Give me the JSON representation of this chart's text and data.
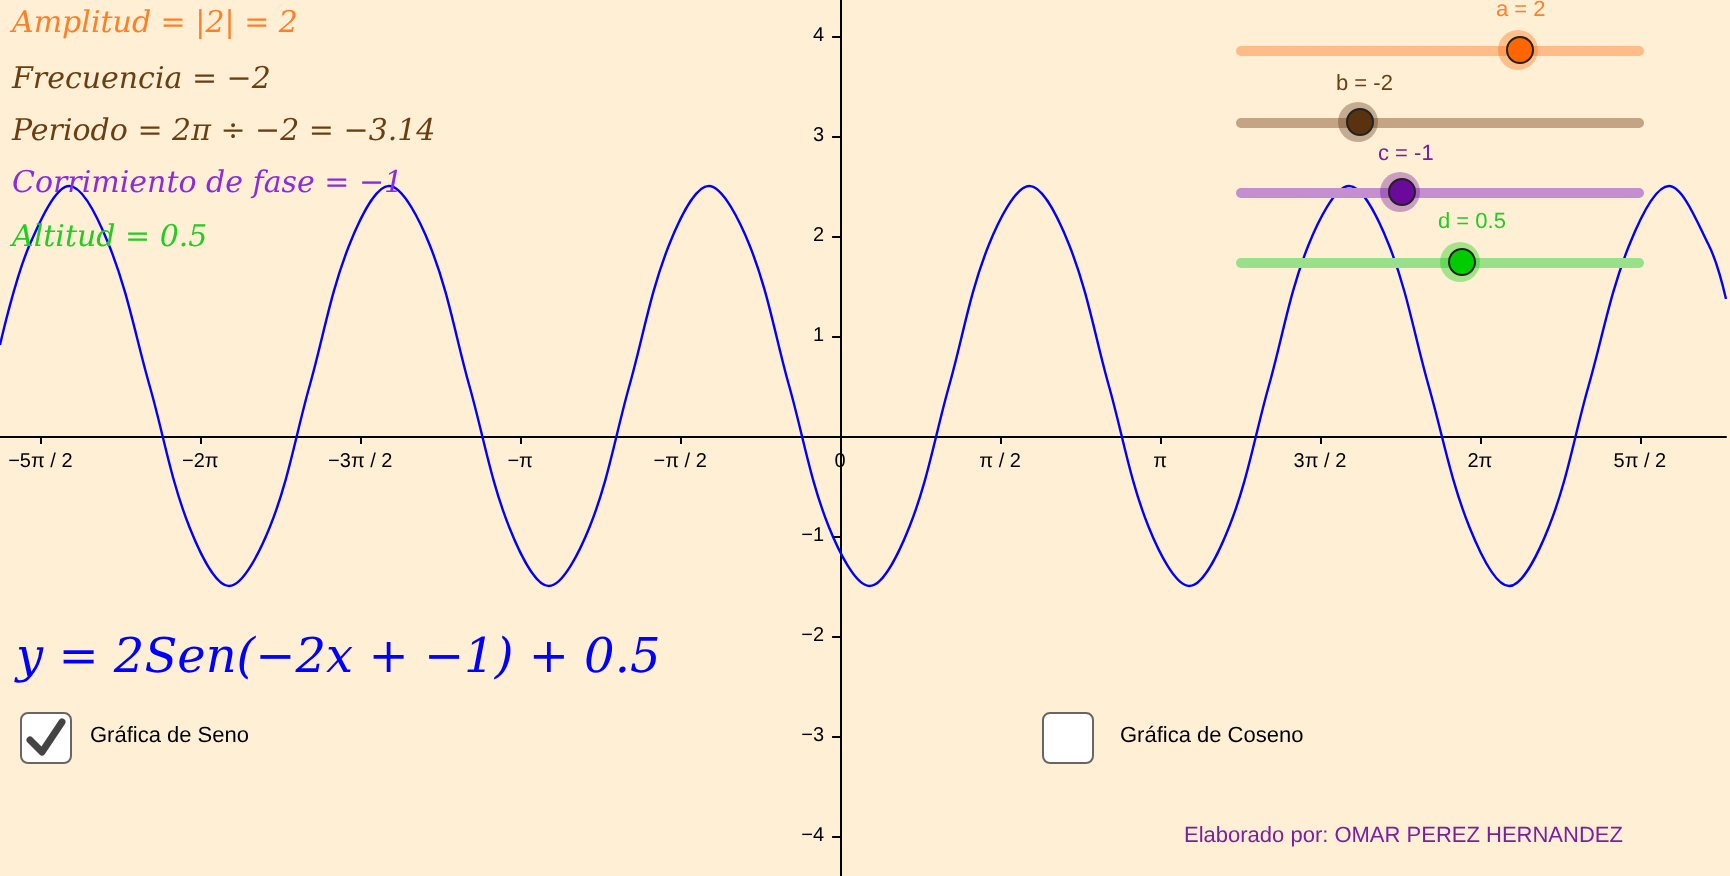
{
  "chart_data": {
    "type": "line",
    "color": "#0000ff",
    "marker": "none",
    "line_style": "solid",
    "grid": false,
    "x": [
      -8.25,
      -7.96,
      -7.57,
      -7.18,
      -6.78,
      -6.39,
      -6.0,
      -5.6,
      -5.21,
      -4.82,
      -4.43,
      -4.03,
      -3.64,
      -3.25,
      -2.86,
      -2.46,
      -2.07,
      -1.68,
      -1.29,
      -0.89,
      -0.5,
      -0.11,
      0.29,
      0.68,
      1.07,
      1.46,
      1.86,
      2.25,
      2.64,
      3.03,
      3.43,
      3.82,
      4.21,
      4.6,
      5.0,
      5.39,
      5.78,
      6.18,
      6.57,
      6.96,
      7.35,
      7.75,
      8.14,
      8.53,
      8.7
    ],
    "values": [
      0.91,
      1.91,
      2.5,
      1.91,
      0.5,
      -0.91,
      -1.5,
      -0.91,
      0.5,
      1.91,
      2.5,
      1.91,
      0.5,
      -0.91,
      -1.5,
      -0.91,
      0.5,
      1.91,
      2.5,
      1.91,
      0.5,
      -0.91,
      -1.5,
      -0.91,
      0.5,
      1.91,
      2.5,
      1.91,
      0.5,
      -0.91,
      -1.5,
      -0.91,
      0.5,
      1.91,
      2.5,
      1.91,
      0.5,
      -0.91,
      -1.5,
      -0.91,
      0.5,
      1.91,
      2.5,
      1.91,
      1.37
    ],
    "xlim": [
      -8.25,
      8.7
    ],
    "ylim": [
      -4.4,
      4.36
    ],
    "xticks": [
      {
        "value": -7.854,
        "label": "−5π / 2"
      },
      {
        "value": -6.283,
        "label": "−2π"
      },
      {
        "value": -4.712,
        "label": "−3π / 2"
      },
      {
        "value": -3.142,
        "label": "−π"
      },
      {
        "value": -1.571,
        "label": "−π / 2"
      },
      {
        "value": 0,
        "label": "0"
      },
      {
        "value": 1.571,
        "label": "π / 2"
      },
      {
        "value": 3.142,
        "label": "π"
      },
      {
        "value": 4.712,
        "label": "3π / 2"
      },
      {
        "value": 6.283,
        "label": "2π"
      },
      {
        "value": 7.854,
        "label": "5π / 2"
      }
    ],
    "yticks": [
      {
        "value": -4,
        "label": "−4"
      },
      {
        "value": -3,
        "label": "−3"
      },
      {
        "value": -2,
        "label": "−2"
      },
      {
        "value": -1,
        "label": "−1"
      },
      {
        "value": 0,
        "label": null
      },
      1,
      2,
      3,
      4
    ],
    "annotations": [
      "Amplitud = |2| = 2",
      "Frecuencia = −2",
      "Periodo = 2π ÷ −2 = −3.14",
      "Corrimiento de fase = −1",
      "Altitud = 0.5",
      "y = 2Sen(−2x + −1) + 0.5",
      "a = 2",
      "b = -2",
      "c = -1",
      "d = 0.5",
      "Gráfica de Seno",
      "Gráfica de Coseno",
      "Elaborado por: OMAR PEREZ HERNANDEZ"
    ]
  }
}
